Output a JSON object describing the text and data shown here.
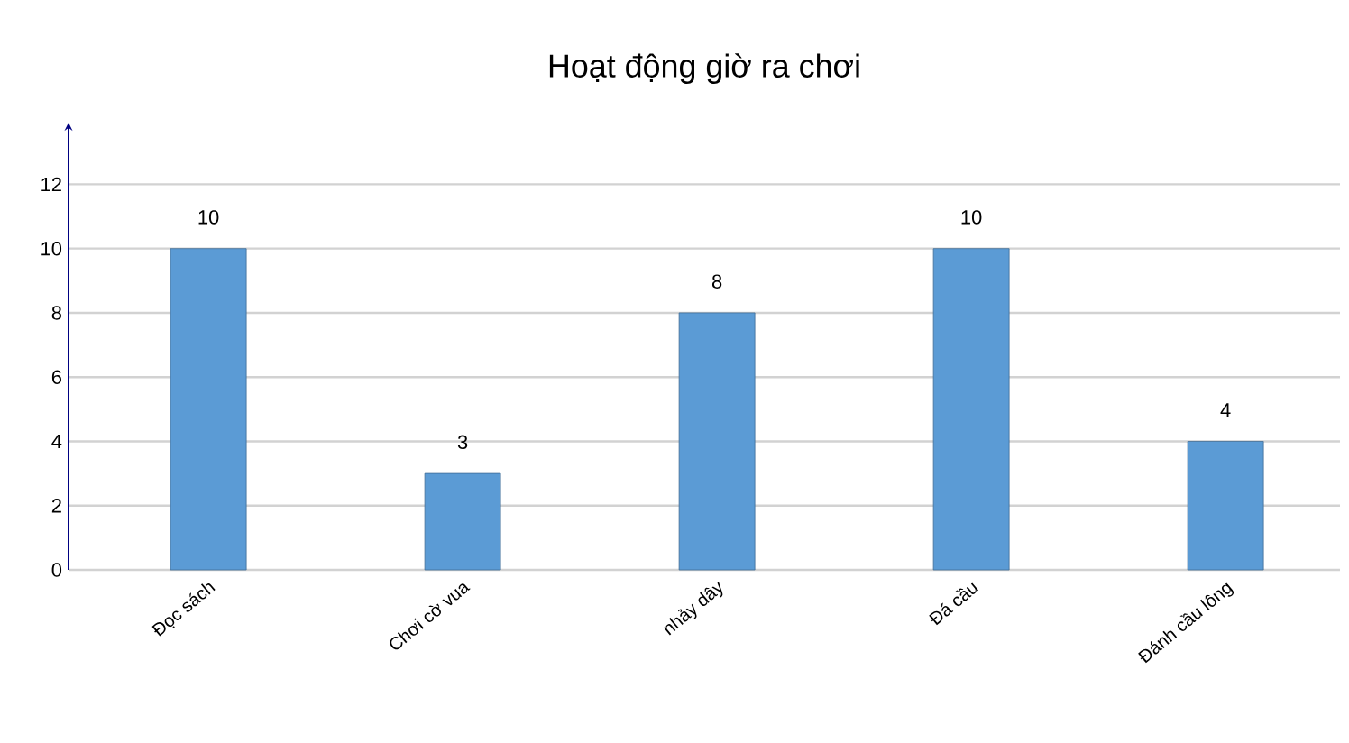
{
  "chart_data": {
    "type": "bar",
    "title": "Hoạt động giờ ra chơi",
    "categories": [
      "Đọc sách",
      "Chơi cờ vua",
      "nhảy dây",
      "Đá cầu",
      "Đánh cầu lông"
    ],
    "values": [
      10,
      3,
      8,
      10,
      4
    ],
    "color": "#5b9bd5",
    "ylim": [
      0,
      12
    ],
    "yticks": [
      0,
      2,
      4,
      6,
      8,
      10,
      12
    ],
    "grid": "y",
    "data_labels": true
  }
}
